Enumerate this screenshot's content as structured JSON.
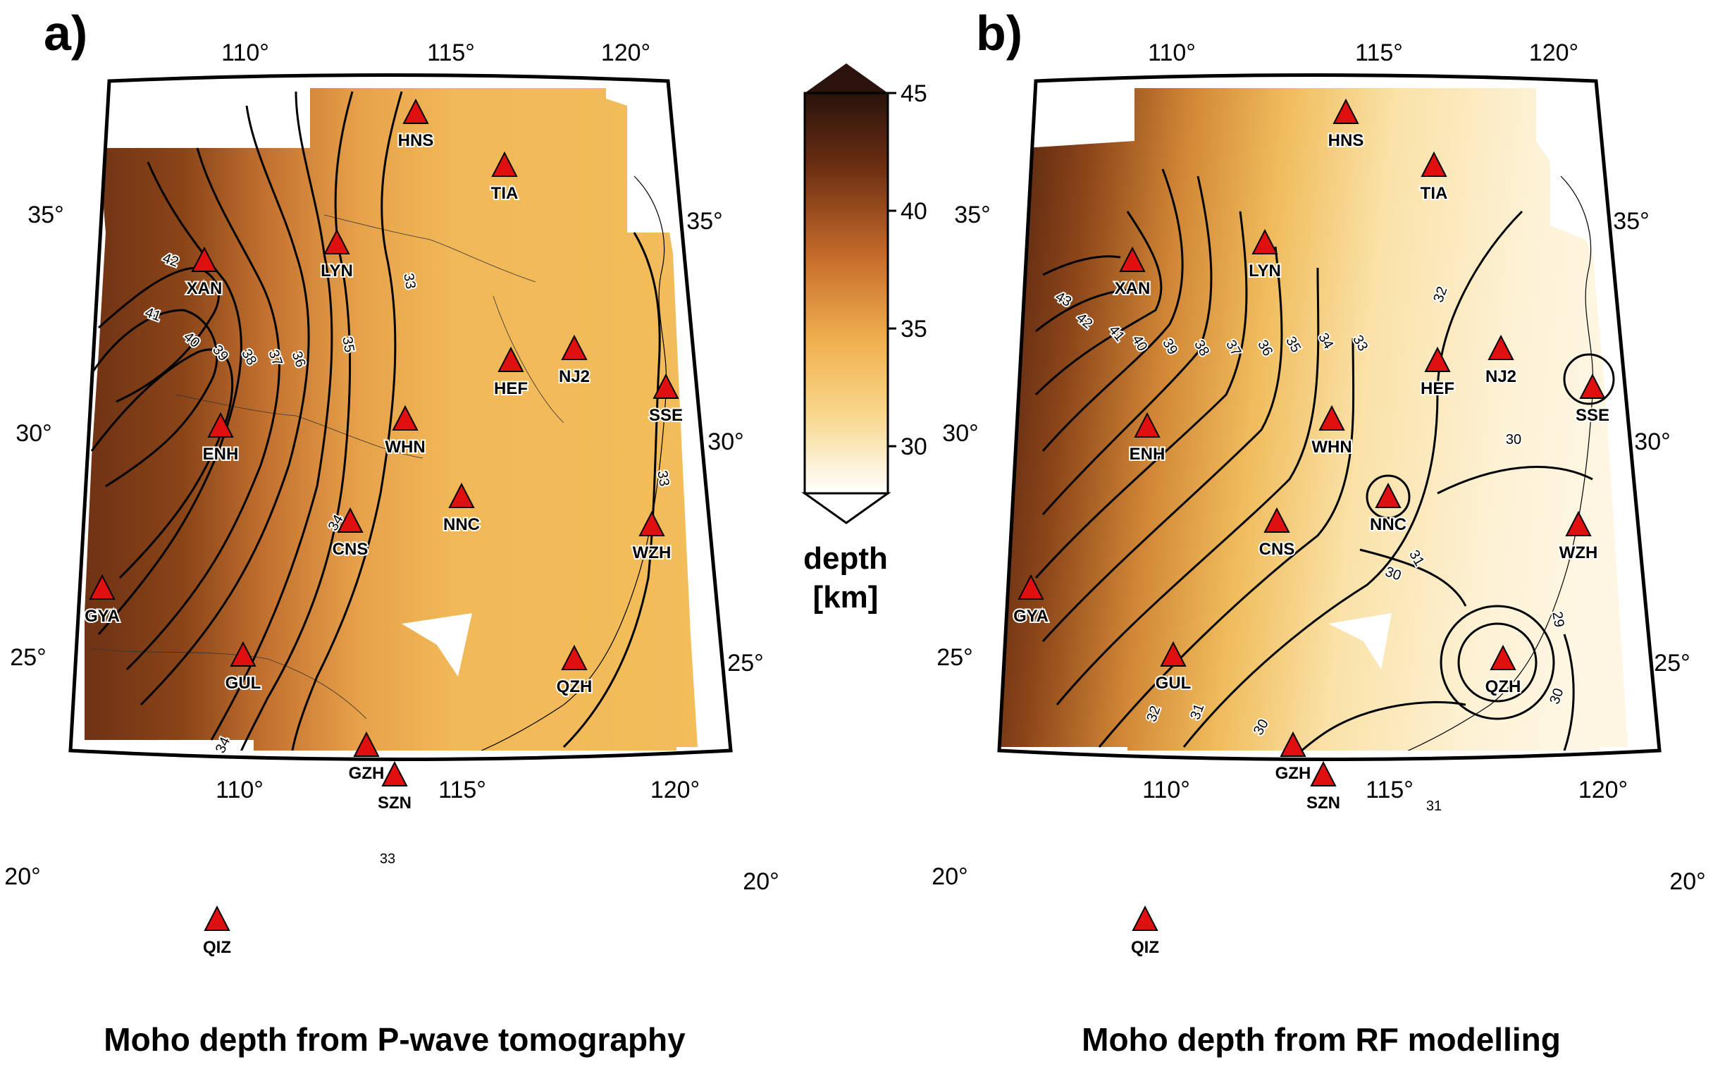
{
  "panels": [
    {
      "letter": "a)",
      "caption": "Moho depth from P-wave tomography",
      "lon_ticks_top": [
        "110°",
        "115°",
        "120°"
      ],
      "lon_ticks_bottom": [
        "110°",
        "115°",
        "120°"
      ],
      "lat_ticks_left": [
        "35°",
        "30°",
        "25°",
        "20°"
      ],
      "lat_ticks_right": [
        "35°",
        "30°",
        "25°",
        "20°"
      ],
      "contour_labels": [
        "42",
        "41",
        "40",
        "39",
        "38",
        "37",
        "36",
        "35",
        "34",
        "33",
        "33",
        "33",
        "34"
      ],
      "stations": [
        "HNS",
        "TIA",
        "LYN",
        "XAN",
        "HEF",
        "NJ2",
        "SSE",
        "ENH",
        "WHN",
        "NNC",
        "CNS",
        "WZH",
        "GYA",
        "GUL",
        "QZH",
        "GZH",
        "SZN",
        "QIZ"
      ]
    },
    {
      "letter": "b)",
      "caption": "Moho depth from RF modelling",
      "lon_ticks_top": [
        "110°",
        "115°",
        "120°"
      ],
      "lon_ticks_bottom": [
        "110°",
        "115°",
        "120°"
      ],
      "lat_ticks_left": [
        "35°",
        "30°",
        "25°",
        "20°"
      ],
      "lat_ticks_right": [
        "35°",
        "30°",
        "25°",
        "20°"
      ],
      "contour_labels": [
        "43",
        "42",
        "41",
        "40",
        "39",
        "38",
        "37",
        "36",
        "35",
        "34",
        "33",
        "32",
        "31",
        "30",
        "29",
        "30",
        "32",
        "31",
        "30",
        "30",
        "31"
      ],
      "stations": [
        "HNS",
        "TIA",
        "LYN",
        "XAN",
        "HEF",
        "NJ2",
        "SSE",
        "ENH",
        "WHN",
        "NNC",
        "CNS",
        "WZH",
        "GYA",
        "GUL",
        "QZH",
        "GZH",
        "SZN",
        "QIZ"
      ]
    }
  ],
  "colorbar": {
    "ticks": [
      "45",
      "40",
      "35",
      "30"
    ],
    "title_line1": "depth",
    "title_line2": "[km]",
    "min": 28,
    "max": 45,
    "colors": {
      "deep": "#2a130c",
      "mid_deep": "#7a3a13",
      "mid": "#c8722c",
      "shallow": "#f2bd55",
      "very_shallow": "#ffffff"
    }
  },
  "colors": {
    "station_fill": "#e01010",
    "contour": "#000000",
    "frame": "#000000"
  }
}
